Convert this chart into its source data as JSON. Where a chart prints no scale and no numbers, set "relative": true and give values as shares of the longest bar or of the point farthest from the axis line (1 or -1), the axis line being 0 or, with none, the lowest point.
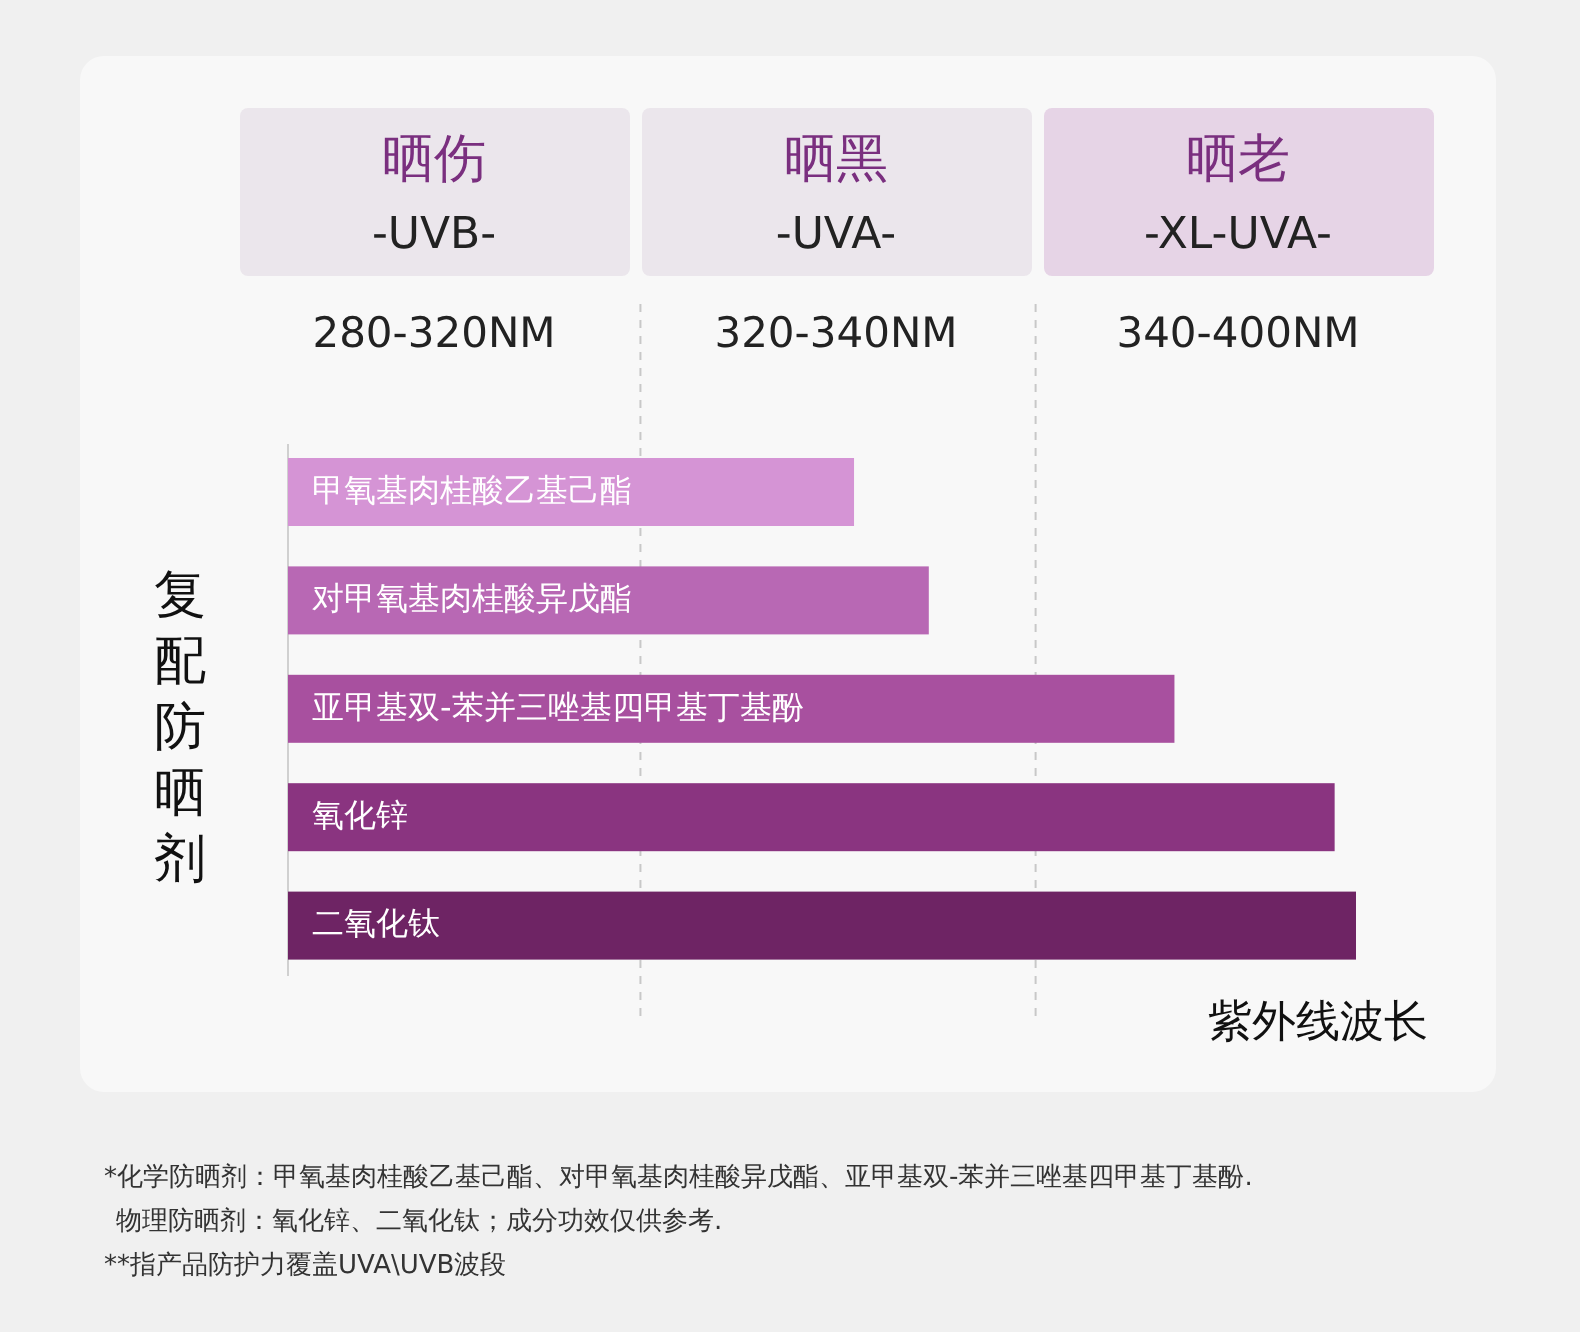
{
  "chart_data": {
    "type": "bar",
    "orientation": "horizontal",
    "relative": true,
    "categories": [
      "甲氧基肉桂酸乙基己酯",
      "对甲氧基肉桂酸异戊酯",
      "亚甲基双-苯并三唑基四甲基丁基酚",
      "氧化锌",
      "二氧化钛"
    ],
    "values": [
      0.53,
      0.6,
      0.83,
      0.98,
      1
    ],
    "colors": [
      "#d594d5",
      "#b868b4",
      "#a8509f",
      "#8a3480",
      "#6e2464"
    ],
    "xlabel": "紫外线波长",
    "ylabel": "复配防晒剂",
    "ref_lines": [
      {
        "axis": "x",
        "value": 0.33,
        "line_style": "dashed",
        "color": "#c8c8c8"
      },
      {
        "axis": "x",
        "value": 0.7,
        "line_style": "dashed",
        "color": "#c8c8c8"
      }
    ],
    "annotations": [
      "晒伤",
      "-UVB-",
      "280-320NM",
      "晒黑",
      "-UVA-",
      "320-340NM",
      "晒老",
      "-XL-UVA-",
      "340-400NM",
      "*化学防晒剂：甲氧基肉桂酸乙基己酯、对甲氧基肉桂酸异戊酯、亚甲基双-苯并三唑基四甲基丁基酚.",
      "物理防晒剂：氧化锌、二氧化钛；成分功效仅供参考.",
      "**指产品防护力覆盖UVA\\UVB波段"
    ]
  }
}
